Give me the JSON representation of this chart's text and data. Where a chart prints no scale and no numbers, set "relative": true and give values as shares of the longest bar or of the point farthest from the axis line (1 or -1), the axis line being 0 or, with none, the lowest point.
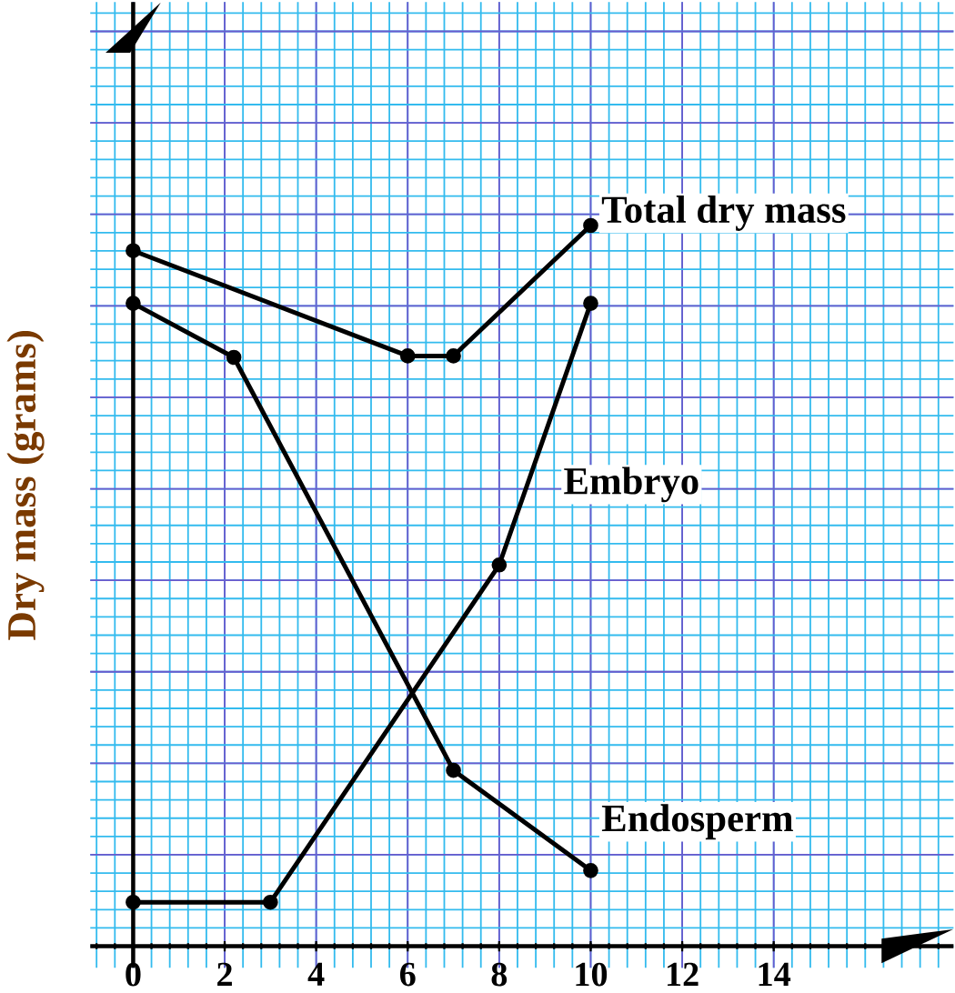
{
  "chart_data": {
    "type": "line",
    "ylabel": "Dry mass (grams)",
    "relative": true,
    "xlim": [
      0,
      16.3
    ],
    "xticks": [
      0,
      2,
      4,
      6,
      8,
      10,
      12,
      14
    ],
    "grid": true,
    "marker": "circle",
    "line_style": "solid",
    "series": [
      {
        "name": "Total dry mass",
        "color": "#000000",
        "x": [
          0,
          6,
          7,
          10
        ],
        "values": [
          0.965,
          0.819,
          0.819,
          1
        ]
      },
      {
        "name": "Embryo",
        "color": "#000000",
        "x": [
          0,
          3,
          8,
          10
        ],
        "values": [
          0.061,
          0.061,
          0.529,
          0.892
        ]
      },
      {
        "name": "Endosperm",
        "color": "#000000",
        "x": [
          0,
          2.2,
          7,
          10
        ],
        "values": [
          0.892,
          0.817,
          0.244,
          0.105
        ]
      }
    ]
  }
}
